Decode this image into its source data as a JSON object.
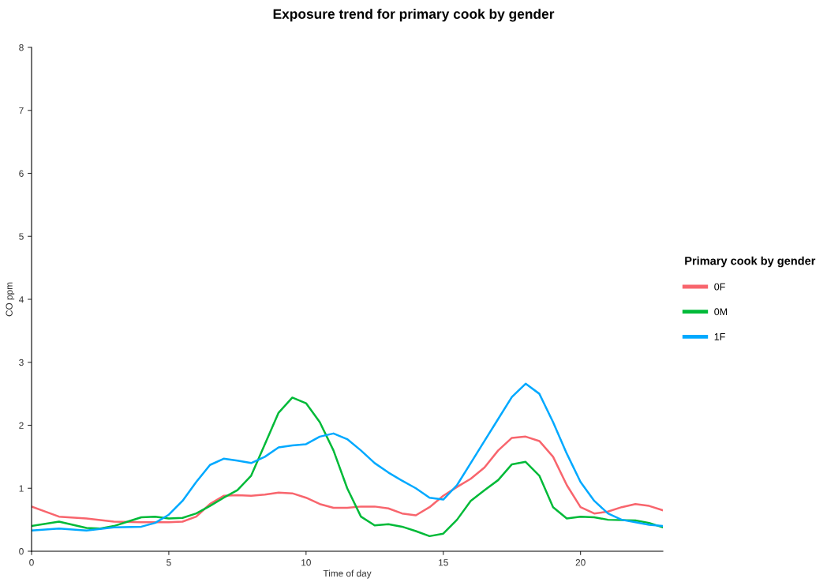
{
  "chart_data": {
    "type": "line",
    "title": "Exposure trend for primary cook by gender",
    "xlabel": "Time of day",
    "ylabel": "CO ppm",
    "legend_title": "Primary cook by gender",
    "legend": "right",
    "grid": false,
    "marker": "none",
    "line_style": "solid",
    "xlim": [
      0,
      23
    ],
    "xticks": [
      0,
      5,
      10,
      15,
      20
    ],
    "ylim": [
      0,
      8
    ],
    "yticks": [
      0,
      1,
      2,
      3,
      4,
      5,
      6,
      7,
      8
    ],
    "series": [
      {
        "name": "0F",
        "color": "#f8656d",
        "x": [
          0,
          1,
          2,
          3,
          4,
          5,
          5.5,
          6,
          6.5,
          7,
          7.5,
          8,
          8.5,
          9,
          9.5,
          10,
          10.5,
          11,
          11.5,
          12,
          12.5,
          13,
          13.5,
          14,
          14.5,
          15,
          15.5,
          16,
          16.5,
          17,
          17.5,
          18,
          18.5,
          19,
          19.5,
          20,
          20.5,
          21,
          21.5,
          22,
          22.5,
          23
        ],
        "values": [
          0.71,
          0.55,
          0.52,
          0.47,
          0.46,
          0.46,
          0.47,
          0.55,
          0.75,
          0.88,
          0.89,
          0.88,
          0.9,
          0.93,
          0.92,
          0.85,
          0.75,
          0.69,
          0.69,
          0.71,
          0.71,
          0.68,
          0.6,
          0.57,
          0.7,
          0.88,
          1.02,
          1.15,
          1.33,
          1.6,
          1.8,
          1.82,
          1.75,
          1.5,
          1.05,
          0.7,
          0.6,
          0.63,
          0.7,
          0.75,
          0.72,
          0.65
        ]
      },
      {
        "name": "0M",
        "color": "#00ba38",
        "x": [
          0,
          1,
          1.5,
          2,
          2.5,
          3,
          3.5,
          4,
          4.5,
          5,
          5.5,
          6,
          6.5,
          7,
          7.5,
          8,
          8.5,
          9,
          9.5,
          10,
          10.5,
          11,
          11.5,
          12,
          12.5,
          13,
          13.5,
          14,
          14.5,
          15,
          15.5,
          16,
          16.5,
          17,
          17.5,
          18,
          18.5,
          19,
          19.5,
          20,
          20.5,
          21,
          22,
          22.5,
          23
        ],
        "values": [
          0.4,
          0.47,
          0.42,
          0.37,
          0.36,
          0.4,
          0.47,
          0.54,
          0.55,
          0.52,
          0.53,
          0.6,
          0.72,
          0.85,
          0.97,
          1.2,
          1.7,
          2.2,
          2.44,
          2.35,
          2.05,
          1.6,
          1.0,
          0.55,
          0.41,
          0.43,
          0.39,
          0.32,
          0.24,
          0.28,
          0.5,
          0.8,
          0.97,
          1.13,
          1.38,
          1.42,
          1.2,
          0.7,
          0.52,
          0.55,
          0.54,
          0.5,
          0.49,
          0.45,
          0.38
        ]
      },
      {
        "name": "1F",
        "color": "#00a9ff",
        "x": [
          0,
          1,
          2,
          3,
          4,
          4.5,
          5,
          5.5,
          6,
          6.5,
          7,
          7.5,
          8,
          8.5,
          9,
          9.5,
          10,
          10.5,
          11,
          11.5,
          12,
          12.5,
          13,
          13.5,
          14,
          14.5,
          15,
          15.5,
          16,
          16.5,
          17,
          17.5,
          18,
          18.5,
          19,
          19.5,
          20,
          20.5,
          21,
          21.5,
          22,
          22.5,
          23
        ],
        "values": [
          0.33,
          0.36,
          0.33,
          0.38,
          0.39,
          0.45,
          0.58,
          0.8,
          1.1,
          1.37,
          1.47,
          1.44,
          1.4,
          1.5,
          1.65,
          1.68,
          1.7,
          1.82,
          1.87,
          1.78,
          1.6,
          1.4,
          1.25,
          1.12,
          1.0,
          0.85,
          0.82,
          1.05,
          1.4,
          1.75,
          2.1,
          2.45,
          2.66,
          2.5,
          2.05,
          1.55,
          1.1,
          0.8,
          0.6,
          0.5,
          0.46,
          0.42,
          0.4
        ]
      }
    ]
  }
}
